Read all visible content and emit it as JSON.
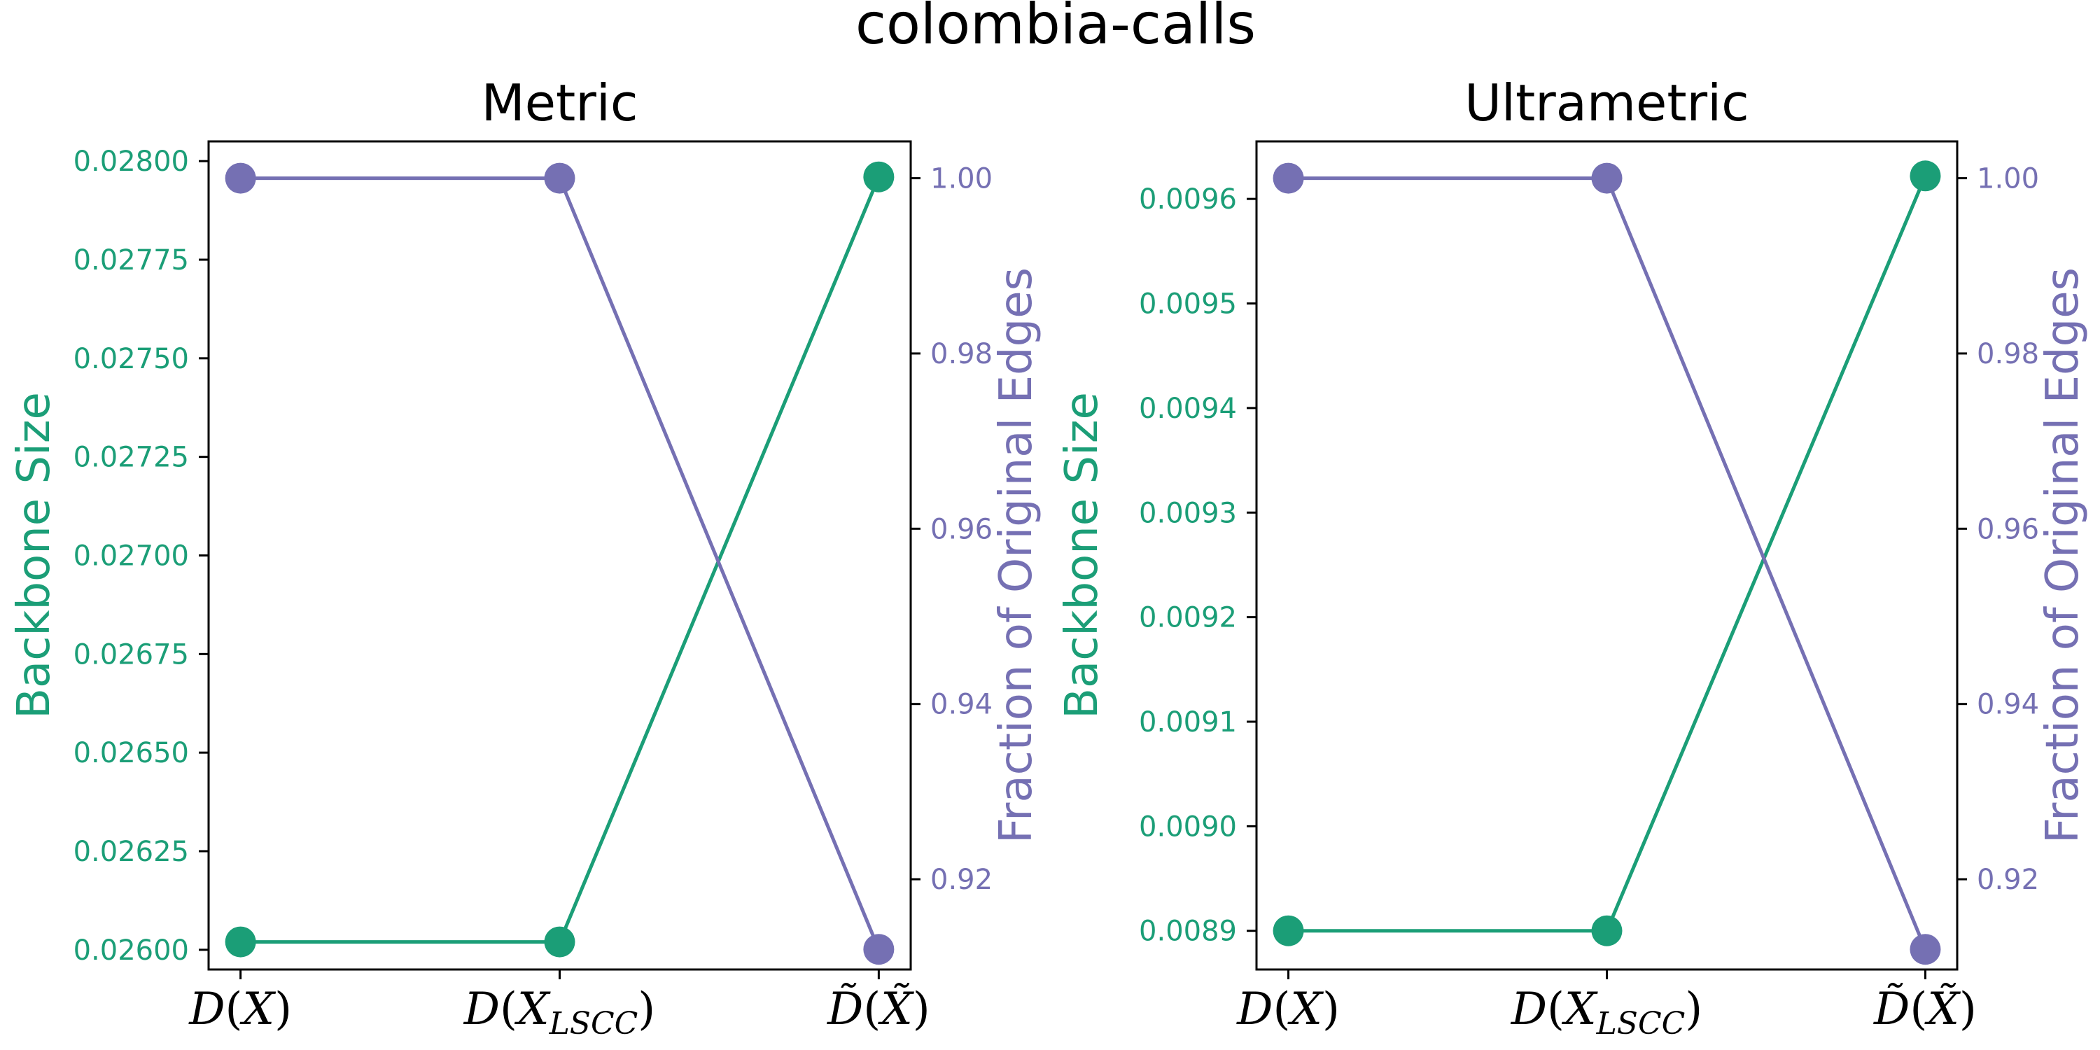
{
  "figure_title": "colombia-calls",
  "colors": {
    "backbone": "#1b9e77",
    "fraction": "#7570b3",
    "axes": "#000000"
  },
  "chart_data": [
    {
      "type": "line",
      "title": "Metric",
      "categories": [
        "D(X)",
        "D(X_LSCC)",
        "D~(X~)"
      ],
      "ylabel_left": "Backbone Size",
      "ylabel_right": "Fraction of Original Edges",
      "ylim_left": [
        0.02595,
        0.02805
      ],
      "ylim_right": [
        0.9097,
        1.0042
      ],
      "yticks_left": [
        0.026,
        0.02625,
        0.0265,
        0.02675,
        0.027,
        0.02725,
        0.0275,
        0.02775,
        0.028
      ],
      "yticklabels_left": [
        "0.02600",
        "0.02625",
        "0.02650",
        "0.02675",
        "0.02700",
        "0.02725",
        "0.02750",
        "0.02775",
        "0.02800"
      ],
      "yticks_right": [
        0.92,
        0.94,
        0.96,
        0.98,
        1.0
      ],
      "yticklabels_right": [
        "0.92",
        "0.94",
        "0.96",
        "0.98",
        "1.00"
      ],
      "series": [
        {
          "name": "Backbone Size",
          "axis": "left",
          "values": [
            0.02602,
            0.02602,
            0.02796
          ]
        },
        {
          "name": "Fraction of Original Edges",
          "axis": "right",
          "values": [
            1.0,
            1.0,
            0.912
          ]
        }
      ]
    },
    {
      "type": "line",
      "title": "Ultrametric",
      "categories": [
        "D(X)",
        "D(X_LSCC)",
        "D~(X~)"
      ],
      "ylabel_left": "Backbone Size",
      "ylabel_right": "Fraction of Original Edges",
      "ylim_left": [
        0.008863,
        0.009655
      ],
      "ylim_right": [
        0.9097,
        1.0042
      ],
      "yticks_left": [
        0.0089,
        0.009,
        0.0091,
        0.0092,
        0.0093,
        0.0094,
        0.0095,
        0.0096
      ],
      "yticklabels_left": [
        "0.0089",
        "0.0090",
        "0.0091",
        "0.0092",
        "0.0093",
        "0.0094",
        "0.0095",
        "0.0096"
      ],
      "yticks_right": [
        0.92,
        0.94,
        0.96,
        0.98,
        1.0
      ],
      "yticklabels_right": [
        "0.92",
        "0.94",
        "0.96",
        "0.98",
        "1.00"
      ],
      "series": [
        {
          "name": "Backbone Size",
          "axis": "left",
          "values": [
            0.0089,
            0.0089,
            0.009622
          ]
        },
        {
          "name": "Fraction of Original Edges",
          "axis": "right",
          "values": [
            1.0,
            1.0,
            0.912
          ]
        }
      ]
    }
  ]
}
